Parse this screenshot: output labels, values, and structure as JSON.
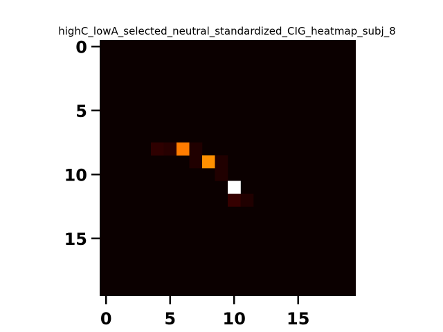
{
  "chart_data": {
    "type": "heatmap",
    "title": "highC_lowA_selected_neutral_standardized_CIG_heatmap_subj_8",
    "rows": 20,
    "cols": 20,
    "x_ticks": [
      0,
      5,
      10,
      15
    ],
    "y_ticks": [
      0,
      5,
      10,
      15
    ],
    "colormap": "hot",
    "background_color": "#0b0000",
    "vmin": 0,
    "vmax": 1,
    "cells": [
      {
        "row": 8,
        "col": 4,
        "value": 0.05
      },
      {
        "row": 8,
        "col": 5,
        "value": 0.04
      },
      {
        "row": 8,
        "col": 6,
        "value": 0.55
      },
      {
        "row": 8,
        "col": 7,
        "value": 0.03
      },
      {
        "row": 9,
        "col": 7,
        "value": 0.03
      },
      {
        "row": 9,
        "col": 8,
        "value": 0.58
      },
      {
        "row": 9,
        "col": 9,
        "value": 0.03
      },
      {
        "row": 10,
        "col": 9,
        "value": 0.03
      },
      {
        "row": 11,
        "col": 10,
        "value": 1.0
      },
      {
        "row": 12,
        "col": 10,
        "value": 0.06
      },
      {
        "row": 12,
        "col": 11,
        "value": 0.03
      }
    ]
  }
}
